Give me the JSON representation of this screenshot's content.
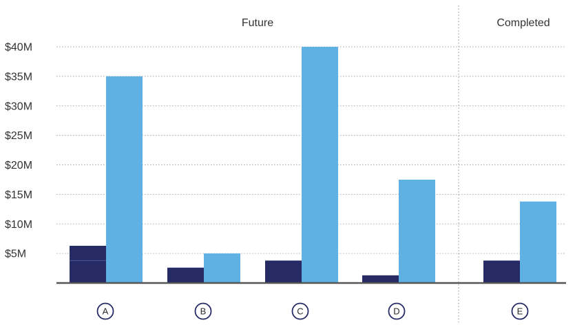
{
  "chart_data": {
    "type": "bar",
    "categories": [
      "A",
      "B",
      "C",
      "D",
      "E"
    ],
    "series": [
      {
        "values": [
          6.3,
          2.6,
          3.8,
          1.3,
          3.8
        ],
        "color": "#262b66"
      },
      {
        "values": [
          35,
          5,
          40,
          17.5,
          13.8
        ],
        "color": "#5fb1e3"
      }
    ],
    "segment_marker": {
      "category": "A",
      "series": 0,
      "value": 3.8
    },
    "y_ticks": [
      5,
      10,
      15,
      20,
      25,
      30,
      35,
      40
    ],
    "y_tick_labels": [
      "$5M",
      "$10M",
      "$15M",
      "$20M",
      "$25M",
      "$30M",
      "$35M",
      "$40M"
    ],
    "ylim": [
      0,
      40
    ],
    "grid": true,
    "sections": [
      {
        "label": "Future",
        "categories": [
          "A",
          "B",
          "C",
          "D"
        ]
      },
      {
        "label": "Completed",
        "categories": [
          "E"
        ]
      }
    ],
    "title": "",
    "xlabel": "",
    "ylabel": ""
  }
}
